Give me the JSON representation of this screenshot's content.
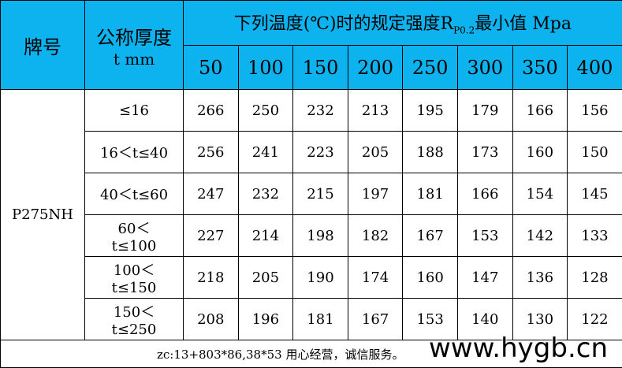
{
  "header": {
    "brand": "牌号",
    "thickness": "公称厚度",
    "thickness_unit": "t mm",
    "title_before": "下列温度(℃)时的规定强度",
    "title_symbol": "R",
    "title_subscript": "P0.2",
    "title_after": "最小值 Mpa",
    "temperatures": [
      "50",
      "100",
      "150",
      "200",
      "250",
      "300",
      "350",
      "400"
    ]
  },
  "table": {
    "grade": "P275NH",
    "rows": [
      {
        "thickness": "≤16",
        "values": [
          "266",
          "250",
          "232",
          "213",
          "195",
          "179",
          "166",
          "156"
        ]
      },
      {
        "thickness": "16＜t≤40",
        "values": [
          "256",
          "241",
          "223",
          "205",
          "188",
          "173",
          "160",
          "150"
        ]
      },
      {
        "thickness": "40＜t≤60",
        "values": [
          "247",
          "232",
          "215",
          "197",
          "181",
          "166",
          "154",
          "145"
        ]
      },
      {
        "thickness": "60＜t≤100",
        "values": [
          "227",
          "214",
          "198",
          "182",
          "167",
          "153",
          "142",
          "133"
        ]
      },
      {
        "thickness": "100＜t≤150",
        "values": [
          "218",
          "205",
          "190",
          "174",
          "160",
          "147",
          "136",
          "128"
        ]
      },
      {
        "thickness": "150＜t≤250",
        "values": [
          "208",
          "196",
          "181",
          "167",
          "153",
          "140",
          "130",
          "122"
        ]
      }
    ]
  },
  "footer": {
    "note": "zc:13+803*86,38*53 用心经营，诚信服务。",
    "watermark": "www.hygb.cn"
  }
}
